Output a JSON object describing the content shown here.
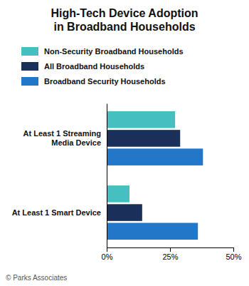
{
  "chart_data": {
    "type": "bar",
    "orientation": "horizontal",
    "title": "High-Tech Device Adoption\nin Broadband Households",
    "categories": [
      "At Least 1 Streaming\nMedia Device",
      "At Least 1 Smart Device"
    ],
    "series": [
      {
        "name": "Non-Security Broadband Households",
        "color": "#45bfbf",
        "values": [
          27,
          9
        ]
      },
      {
        "name": "All Broadband Households",
        "color": "#1a2f5a",
        "values": [
          29,
          14
        ]
      },
      {
        "name": "Broadband Security Households",
        "color": "#2277c8",
        "values": [
          38,
          36
        ]
      }
    ],
    "xlim": [
      0,
      50
    ],
    "xticks": [
      {
        "value": 0,
        "label": "0%"
      },
      {
        "value": 25,
        "label": "25%"
      },
      {
        "value": 50,
        "label": "50%"
      }
    ],
    "annotations": [
      "© Parks Associates"
    ],
    "legend": "top",
    "grid": false
  }
}
